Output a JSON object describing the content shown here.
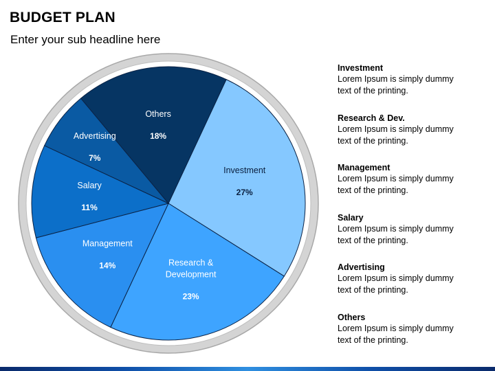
{
  "title": "BUDGET PLAN",
  "subtitle": "Enter your sub headline here",
  "chart_data": {
    "type": "pie",
    "title": "BUDGET PLAN",
    "slices": [
      {
        "name": "Investment",
        "value": 27,
        "label": "27%",
        "color": "#85c8ff",
        "text_color": "#0a1f3f"
      },
      {
        "name": "Research & Development",
        "value": 23,
        "label": "23%",
        "color": "#3ea4ff",
        "text_color": "#ffffff"
      },
      {
        "name": "Management",
        "value": 14,
        "label": "14%",
        "color": "#2a8ff0",
        "text_color": "#ffffff"
      },
      {
        "name": "Salary",
        "value": 11,
        "label": "11%",
        "color": "#0c6fc9",
        "text_color": "#ffffff"
      },
      {
        "name": "Advertising",
        "value": 7,
        "label": "7%",
        "color": "#0a5aa3",
        "text_color": "#ffffff"
      },
      {
        "name": "Others",
        "value": 18,
        "label": "18%",
        "color": "#063563",
        "text_color": "#ffffff"
      }
    ],
    "slice_label_lines": [
      [
        "Investment"
      ],
      [
        "Research &",
        "Development"
      ],
      [
        "Management"
      ],
      [
        "Salary"
      ],
      [
        "Advertising"
      ],
      [
        "Others"
      ]
    ],
    "legend": "right",
    "ring_color": "#d4d4d4"
  },
  "descriptions": [
    {
      "title": "Investment",
      "text": [
        "Lorem Ipsum is simply dummy",
        "text of the printing."
      ]
    },
    {
      "title": "Research & Dev.",
      "text": [
        "Lorem Ipsum is simply dummy",
        "text of the printing."
      ]
    },
    {
      "title": "Management",
      "text": [
        "Lorem Ipsum is simply dummy",
        "text of the printing."
      ]
    },
    {
      "title": "Salary",
      "text": [
        "Lorem Ipsum is simply dummy",
        "text of the printing."
      ]
    },
    {
      "title": "Advertising",
      "text": [
        "Lorem Ipsum is simply dummy",
        "text of the printing."
      ]
    },
    {
      "title": "Others",
      "text": [
        "Lorem Ipsum is simply dummy",
        "text of the printing."
      ]
    }
  ]
}
